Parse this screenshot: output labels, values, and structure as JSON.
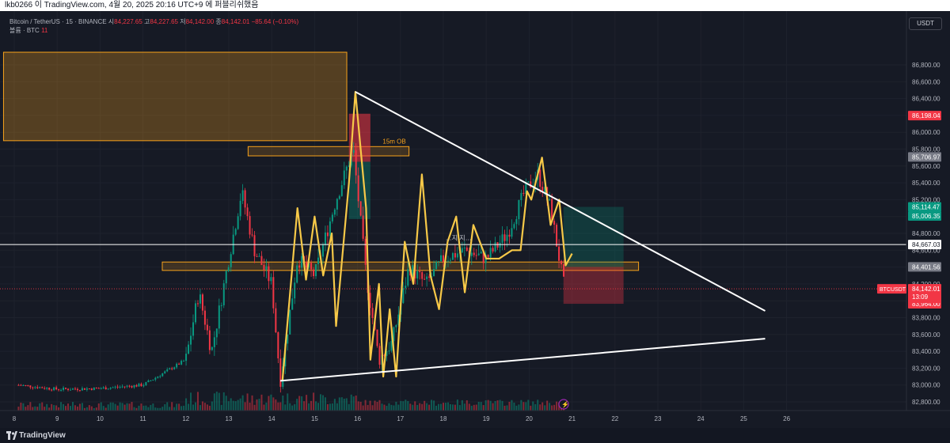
{
  "header": {
    "text": "lkb0266 이 TradingView.com, 4월 20, 2025 20:16 UTC+9 에 퍼블리쉬했음"
  },
  "legend": {
    "symbol": "Bitcoin / TetherUS · 15 · BINANCE",
    "o_label": "시",
    "o_value": "84,227.65",
    "h_label": "고",
    "h_value": "84,227.65",
    "l_label": "저",
    "l_value": "84,142.00",
    "c_label": "종",
    "c_value": "84,142.01",
    "change": "−85.64 (−0.10%)",
    "volume_label": "볼륨 · BTC",
    "volume_value": "11"
  },
  "currency_button": "USDT",
  "footer": {
    "brand": "TradingView"
  },
  "annotations": {
    "ob_label": "15m OB",
    "mid_text": "…지 지…"
  },
  "colors": {
    "bg": "#161a25",
    "up": "#089981",
    "down": "#f23645",
    "zigzag": "#f7c948",
    "orange": "#f7a21b",
    "white": "#ffffff"
  },
  "chart_data": {
    "type": "candlestick",
    "symbol": "BTCUSDT",
    "timeframe": "15",
    "ylim": [
      82700,
      86950
    ],
    "y_ticks": [
      "82,800.00",
      "83,000.00",
      "83,200.00",
      "83,400.00",
      "83,600.00",
      "83,800.00",
      "84,000.00",
      "84,200.00",
      "84,400.00",
      "84,600.00",
      "84,800.00",
      "85,000.00",
      "85,200.00",
      "85,400.00",
      "85,600.00",
      "85,800.00",
      "86,000.00",
      "86,200.00",
      "86,400.00",
      "86,600.00",
      "86,800.00"
    ],
    "x_ticks": [
      "8",
      "9",
      "10",
      "11",
      "12",
      "13",
      "14",
      "15",
      "16",
      "17",
      "18",
      "19",
      "20",
      "21",
      "22",
      "23",
      "24",
      "25",
      "26"
    ],
    "price_labels": [
      {
        "value": "86,198.04",
        "price": 86198.04,
        "color": "#f23645"
      },
      {
        "value": "85,706.97",
        "price": 85706.97,
        "color": "#787b86"
      },
      {
        "value": "85,114.47",
        "price": 85114.47,
        "color": "#089981"
      },
      {
        "value": "85,006.35",
        "price": 85006.35,
        "color": "#089981"
      },
      {
        "value": "84,667.03",
        "price": 84667.03,
        "color": "#ffffff"
      },
      {
        "value": "84,401.56",
        "price": 84401.56,
        "color": "#787b86"
      },
      {
        "value": "84,142.01",
        "price": 84142.01,
        "color": "#f23645"
      },
      {
        "value": "83,964.00",
        "price": 83964.0,
        "color": "#f23645"
      }
    ],
    "current_tag": {
      "symbol": "BTCUSDT",
      "price": "84,142.01",
      "countdown": "13:09"
    },
    "horizontal_line": 84667.03,
    "zones": [
      {
        "name": "htf-supply-zone",
        "x": [
          7.75,
          15.75
        ],
        "y": [
          85900,
          86950
        ]
      },
      {
        "name": "15m-ob-zone",
        "x": [
          13.45,
          17.2
        ],
        "y": [
          85720,
          85830
        ],
        "label": "15m OB"
      },
      {
        "name": "support-zone",
        "x": [
          11.45,
          22.55
        ],
        "y": [
          84360,
          84460
        ]
      }
    ],
    "positions": [
      {
        "name": "first-trade",
        "x": [
          15.8,
          16.3
        ],
        "entry": 85650,
        "target": 84970,
        "stop": 86220
      },
      {
        "name": "long-setup",
        "x": [
          20.8,
          22.2
        ],
        "entry": 84401.56,
        "target": 85114.47,
        "stop": 83964.0
      }
    ],
    "trendlines": [
      {
        "name": "descending-resistance",
        "from": [
          15.95,
          86480
        ],
        "to": [
          25.5,
          83880
        ]
      },
      {
        "name": "ascending-support",
        "from": [
          14.2,
          83050
        ],
        "to": [
          25.5,
          83550
        ]
      }
    ]
  }
}
